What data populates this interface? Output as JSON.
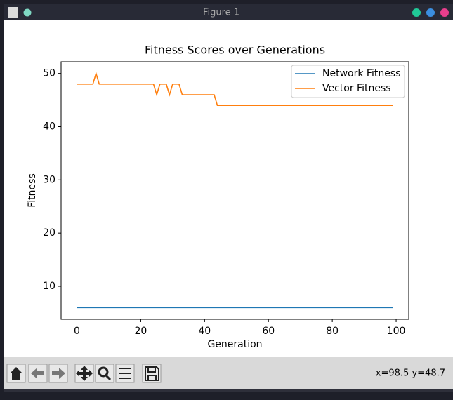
{
  "window": {
    "title": "Figure 1",
    "status": "x=98.5 y=48.7"
  },
  "chart_data": {
    "type": "line",
    "title": "Fitness Scores over Generations",
    "x_label": "Generation",
    "y_label": "Fitness",
    "x": [
      0,
      1,
      2,
      3,
      4,
      5,
      6,
      7,
      8,
      9,
      10,
      11,
      12,
      13,
      14,
      15,
      16,
      17,
      18,
      19,
      20,
      21,
      22,
      23,
      24,
      25,
      26,
      27,
      28,
      29,
      30,
      31,
      32,
      33,
      34,
      35,
      36,
      37,
      38,
      39,
      40,
      41,
      42,
      43,
      44,
      45,
      46,
      47,
      48,
      49,
      50,
      51,
      52,
      53,
      54,
      55,
      56,
      57,
      58,
      59,
      60,
      61,
      62,
      63,
      64,
      65,
      66,
      67,
      68,
      69,
      70,
      71,
      72,
      73,
      74,
      75,
      76,
      77,
      78,
      79,
      80,
      81,
      82,
      83,
      84,
      85,
      86,
      87,
      88,
      89,
      90,
      91,
      92,
      93,
      94,
      95,
      96,
      97,
      98,
      99
    ],
    "series": [
      {
        "name": "Network Fitness",
        "color": "#1f77b4",
        "values": [
          6,
          6,
          6,
          6,
          6,
          6,
          6,
          6,
          6,
          6,
          6,
          6,
          6,
          6,
          6,
          6,
          6,
          6,
          6,
          6,
          6,
          6,
          6,
          6,
          6,
          6,
          6,
          6,
          6,
          6,
          6,
          6,
          6,
          6,
          6,
          6,
          6,
          6,
          6,
          6,
          6,
          6,
          6,
          6,
          6,
          6,
          6,
          6,
          6,
          6,
          6,
          6,
          6,
          6,
          6,
          6,
          6,
          6,
          6,
          6,
          6,
          6,
          6,
          6,
          6,
          6,
          6,
          6,
          6,
          6,
          6,
          6,
          6,
          6,
          6,
          6,
          6,
          6,
          6,
          6,
          6,
          6,
          6,
          6,
          6,
          6,
          6,
          6,
          6,
          6,
          6,
          6,
          6,
          6,
          6,
          6,
          6,
          6,
          6,
          6
        ]
      },
      {
        "name": "Vector Fitness",
        "color": "#ff7f0e",
        "values": [
          48,
          48,
          48,
          48,
          48,
          48,
          50,
          48,
          48,
          48,
          48,
          48,
          48,
          48,
          48,
          48,
          48,
          48,
          48,
          48,
          48,
          48,
          48,
          48,
          48,
          46,
          48,
          48,
          48,
          46,
          48,
          48,
          48,
          46,
          46,
          46,
          46,
          46,
          46,
          46,
          46,
          46,
          46,
          46,
          44,
          44,
          44,
          44,
          44,
          44,
          44,
          44,
          44,
          44,
          44,
          44,
          44,
          44,
          44,
          44,
          44,
          44,
          44,
          44,
          44,
          44,
          44,
          44,
          44,
          44,
          44,
          44,
          44,
          44,
          44,
          44,
          44,
          44,
          44,
          44,
          44,
          44,
          44,
          44,
          44,
          44,
          44,
          44,
          44,
          44,
          44,
          44,
          44,
          44,
          44,
          44,
          44,
          44,
          44,
          44
        ]
      }
    ],
    "xlim": [
      -4.95,
      103.95
    ],
    "xticks": [
      0,
      20,
      40,
      60,
      80,
      100
    ],
    "ylim": [
      3.8,
      52.2
    ],
    "yticks": [
      10,
      20,
      30,
      40,
      50
    ],
    "legend": "upper right"
  }
}
